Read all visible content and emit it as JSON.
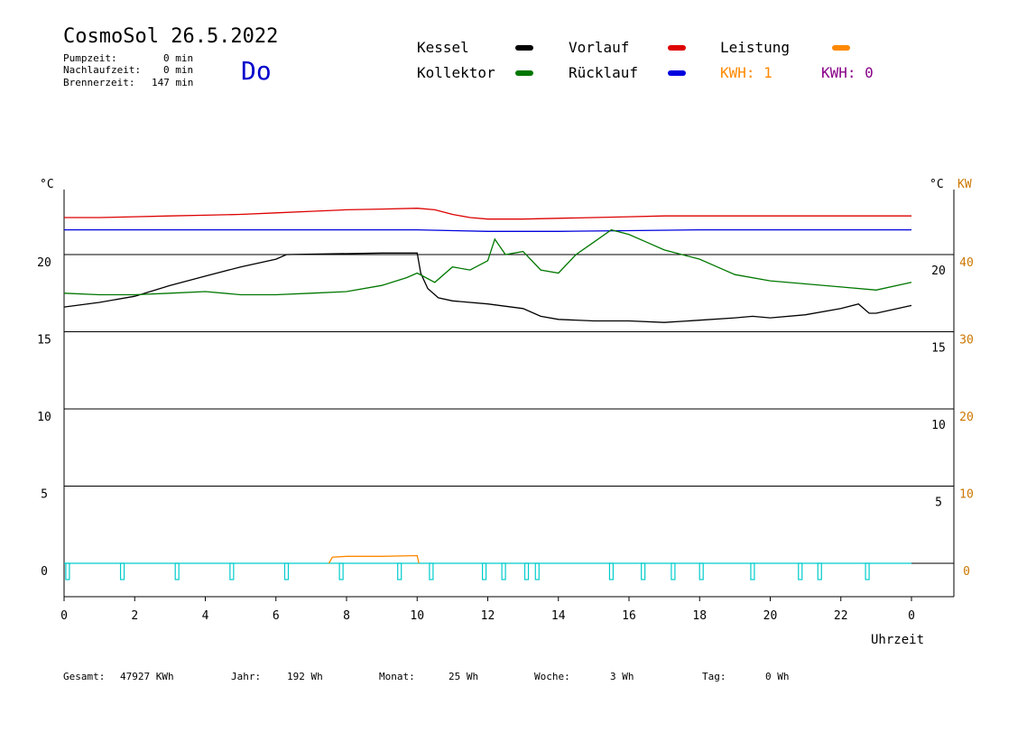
{
  "header": {
    "title": "CosmoSol 26.5.2022",
    "day": "Do",
    "pump_label": "Pumpzeit:",
    "pump_value": "0 min",
    "after_label": "Nachlaufzeit:",
    "after_value": "0 min",
    "burner_label": "Brennerzeit:",
    "burner_value": "147 min"
  },
  "legend": {
    "kessel": "Kessel",
    "kollektor": "Kollektor",
    "vorlauf": "Vorlauf",
    "ruecklauf": "Rücklauf",
    "leistung": "Leistung",
    "kwh1": "KWH: 1",
    "kwh2": "KWH: 0"
  },
  "colors": {
    "kessel": "#000000",
    "kollektor": "#007700",
    "vorlauf": "#dd0000",
    "ruecklauf": "#0000dd",
    "leistung": "#ff8800",
    "kwh2": "#880088",
    "pump": "#00cccc"
  },
  "footer": {
    "gesamt_label": "Gesamt:",
    "gesamt_value": "47927 KWh",
    "jahr_label": "Jahr:",
    "jahr_value": "192 Wh",
    "monat_label": "Monat:",
    "monat_value": "25 Wh",
    "woche_label": "Woche:",
    "woche_value": "3 Wh",
    "tag_label": "Tag:",
    "tag_value": "0 Wh"
  },
  "chart_data": {
    "type": "line",
    "title": "CosmoSol 26.5.2022",
    "xlabel": "Uhrzeit",
    "ylabel_left": "°C",
    "ylabel_right": "°C",
    "ylabel_right2": "KW",
    "xlim": [
      0,
      24
    ],
    "ylim": [
      -1,
      24
    ],
    "x_ticks": [
      "0",
      "2",
      "4",
      "6",
      "8",
      "10",
      "12",
      "14",
      "16",
      "18",
      "20",
      "22",
      "0"
    ],
    "y_ticks_left": [
      "20",
      "15",
      "10",
      "5",
      "0"
    ],
    "y_ticks_right": [
      "20",
      "15",
      "10",
      "5"
    ],
    "y_ticks_kw": [
      "40",
      "30",
      "20",
      "10",
      "0"
    ],
    "grid": "horizontal",
    "series": [
      {
        "name": "Vorlauf",
        "x": [
          0,
          1,
          2,
          3,
          4,
          5,
          6,
          7,
          8,
          9,
          10,
          10.5,
          11,
          11.5,
          12,
          13,
          14,
          15,
          16,
          17,
          18,
          19,
          20,
          21,
          22,
          23,
          24
        ],
        "y": [
          22.4,
          22.4,
          22.45,
          22.5,
          22.55,
          22.6,
          22.7,
          22.8,
          22.9,
          22.95,
          23.0,
          22.9,
          22.6,
          22.4,
          22.3,
          22.3,
          22.35,
          22.4,
          22.45,
          22.5,
          22.5,
          22.5,
          22.5,
          22.5,
          22.5,
          22.5,
          22.5
        ]
      },
      {
        "name": "Rücklauf",
        "x": [
          0,
          2,
          4,
          6,
          8,
          10,
          11,
          12,
          13,
          14,
          16,
          18,
          20,
          22,
          24
        ],
        "y": [
          21.6,
          21.6,
          21.6,
          21.6,
          21.6,
          21.6,
          21.55,
          21.5,
          21.5,
          21.5,
          21.55,
          21.6,
          21.6,
          21.6,
          21.6
        ]
      },
      {
        "name": "Kessel",
        "x": [
          0,
          1,
          2,
          3,
          4,
          5,
          6,
          6.3,
          9,
          10,
          10.1,
          10.3,
          10.6,
          11,
          12,
          13,
          13.5,
          14,
          15,
          16,
          17,
          18,
          19,
          19.5,
          20,
          21,
          22,
          22.5,
          22.8,
          23,
          24
        ],
        "y": [
          16.6,
          16.9,
          17.3,
          18.0,
          18.6,
          19.2,
          19.7,
          20.0,
          20.1,
          20.1,
          18.8,
          17.8,
          17.2,
          17.0,
          16.8,
          16.5,
          16.0,
          15.8,
          15.7,
          15.7,
          15.6,
          15.75,
          15.9,
          16.0,
          15.9,
          16.1,
          16.5,
          16.8,
          16.2,
          16.2,
          16.7
        ]
      },
      {
        "name": "Kollektor",
        "x": [
          0,
          1,
          2,
          3,
          4,
          5,
          6,
          7,
          8,
          9,
          9.7,
          10,
          10.5,
          11,
          11.5,
          12,
          12.2,
          12.5,
          13,
          13.5,
          14,
          14.5,
          15,
          15.5,
          16,
          16.5,
          17,
          17.5,
          18,
          18.5,
          19,
          20,
          21,
          22,
          23,
          24
        ],
        "y": [
          17.5,
          17.4,
          17.4,
          17.5,
          17.6,
          17.4,
          17.4,
          17.5,
          17.6,
          18.0,
          18.5,
          18.8,
          18.2,
          19.2,
          19.0,
          19.6,
          21.0,
          20.0,
          20.2,
          19.0,
          18.8,
          20.0,
          20.8,
          21.6,
          21.3,
          20.8,
          20.3,
          20.0,
          19.7,
          19.2,
          18.7,
          18.3,
          18.1,
          17.9,
          17.7,
          18.2
        ]
      },
      {
        "name": "Leistung",
        "unit": "KW",
        "x": [
          7.5,
          7.6,
          8.0,
          9.0,
          10.0,
          10.05
        ],
        "y": [
          0,
          0.8,
          0.9,
          0.9,
          1.0,
          0
        ]
      }
    ],
    "pump_pulses": [
      0.1,
      1.65,
      3.2,
      4.75,
      6.3,
      7.85,
      9.5,
      10.4,
      11.9,
      12.45,
      13.1,
      13.4,
      15.5,
      16.4,
      17.25,
      18.05,
      19.5,
      20.85,
      21.4,
      22.75
    ]
  }
}
